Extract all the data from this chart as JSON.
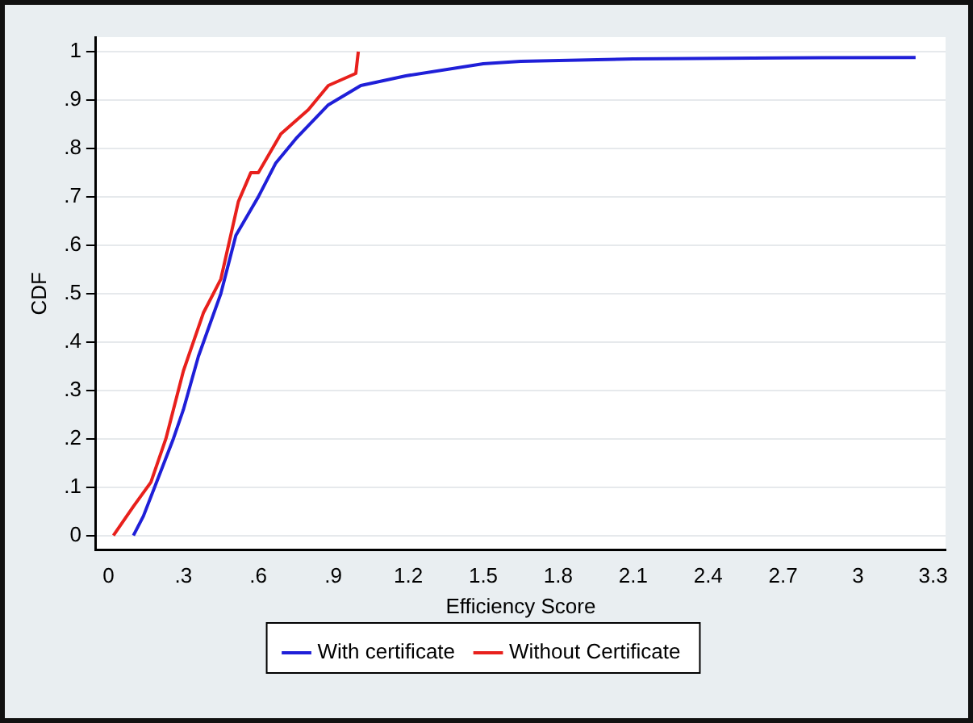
{
  "chart_data": {
    "type": "line",
    "xlabel": "Efficiency Score",
    "ylabel": "CDF",
    "xlim": [
      -0.05,
      3.35
    ],
    "xticks": [
      0,
      {
        "value": 0.3,
        "label": ".3"
      },
      {
        "value": 0.6,
        "label": ".6"
      },
      {
        "value": 0.9,
        "label": ".9"
      },
      1.2,
      1.5,
      1.8,
      2.1,
      2.4,
      2.7,
      3,
      3.3
    ],
    "ylim": [
      -0.03,
      1.03
    ],
    "yticks": [
      0,
      {
        "value": 0.1,
        "label": ".1"
      },
      {
        "value": 0.2,
        "label": ".2"
      },
      {
        "value": 0.3,
        "label": ".3"
      },
      {
        "value": 0.4,
        "label": ".4"
      },
      {
        "value": 0.5,
        "label": ".5"
      },
      {
        "value": 0.6,
        "label": ".6"
      },
      {
        "value": 0.7,
        "label": ".7"
      },
      {
        "value": 0.8,
        "label": ".8"
      },
      {
        "value": 0.9,
        "label": ".9"
      },
      1
    ],
    "grid": "y",
    "legend": "bottom",
    "marker": "none",
    "line_style": "solid",
    "series": [
      {
        "name": "With certificate",
        "color": "#1f1fd8",
        "x": [
          0.1,
          0.14,
          0.2,
          0.26,
          0.3,
          0.36,
          0.45,
          0.51,
          0.6,
          0.67,
          0.75,
          0.88,
          1.01,
          1.19,
          1.5,
          1.65,
          2.1,
          2.7,
          3.23
        ],
        "values": [
          0,
          0.04,
          0.12,
          0.2,
          0.26,
          0.37,
          0.5,
          0.62,
          0.7,
          0.77,
          0.82,
          0.89,
          0.93,
          0.95,
          0.975,
          0.98,
          0.985,
          0.987,
          0.988
        ]
      },
      {
        "name": "Without Certificate",
        "color": "#e8201c",
        "x": [
          0.02,
          0.1,
          0.17,
          0.23,
          0.3,
          0.38,
          0.45,
          0.52,
          0.57,
          0.6,
          0.69,
          0.8,
          0.88,
          0.99,
          1.0
        ],
        "values": [
          0,
          0.06,
          0.11,
          0.2,
          0.34,
          0.46,
          0.53,
          0.69,
          0.75,
          0.75,
          0.83,
          0.88,
          0.93,
          0.955,
          1.0
        ]
      }
    ]
  }
}
